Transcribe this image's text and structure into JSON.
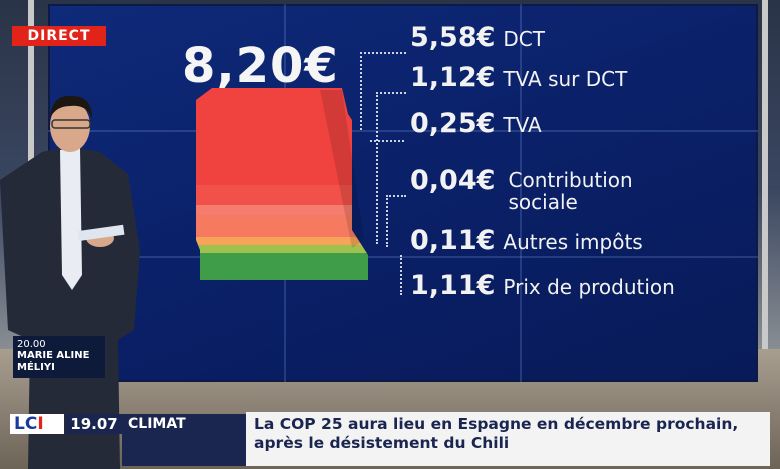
{
  "badge": "DIRECT",
  "total_price": "8,20€",
  "breakdown": [
    {
      "value": "5,58€",
      "label": "DCT"
    },
    {
      "value": "1,12€",
      "label": "TVA sur DCT"
    },
    {
      "value": "0,25€",
      "label": "TVA"
    },
    {
      "value": "0,04€",
      "label": "Contribution sociale"
    },
    {
      "value": "0,11€",
      "label": "Autres impôts"
    },
    {
      "value": "1,11€",
      "label": "Prix de prodution"
    }
  ],
  "presenter": {
    "time": "20.00",
    "name": "MARIE ALINE MÉLIYI"
  },
  "ticker": {
    "channel_l": "LC",
    "channel_i": "I",
    "clock": "19.07",
    "topic": "CLIMAT",
    "headline": "La COP 25 aura lieu en Espagne en décembre prochain, après le désistement du Chili"
  },
  "colors": {
    "wall": "#0a2068",
    "red": "#f0433f",
    "salmon": "#f57c6e",
    "orange": "#f7a45a",
    "green": "#3f9d4a",
    "badge": "#e2231a"
  }
}
